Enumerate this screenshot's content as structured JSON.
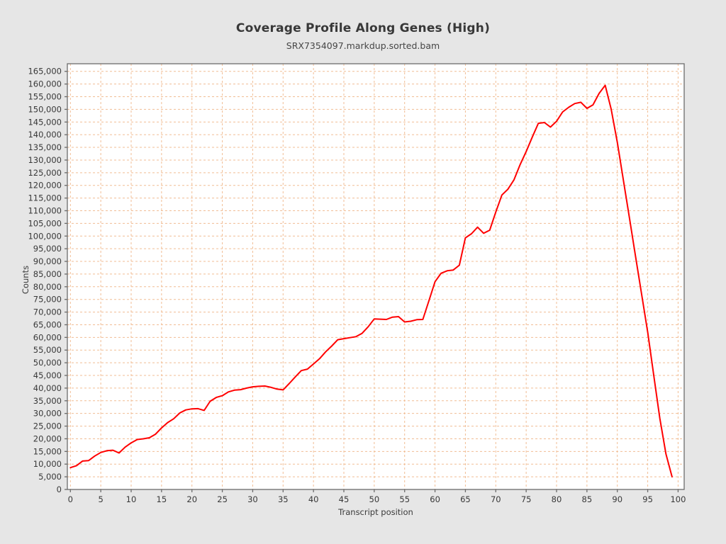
{
  "figure": {
    "title": "Coverage Profile Along Genes (High)",
    "subtitle": "SRX7354097.markdup.sorted.bam"
  },
  "chart_data": {
    "type": "line",
    "title": "Coverage Profile Along Genes (High)",
    "subtitle": "SRX7354097.markdup.sorted.bam",
    "xlabel": "Transcript position",
    "ylabel": "Counts",
    "xlim": [
      -0.5,
      101
    ],
    "ylim": [
      0,
      168000
    ],
    "x_ticks": [
      0,
      5,
      10,
      15,
      20,
      25,
      30,
      35,
      40,
      45,
      50,
      55,
      60,
      65,
      70,
      75,
      80,
      85,
      90,
      95,
      100
    ],
    "y_ticks": [
      0,
      5000,
      10000,
      15000,
      20000,
      25000,
      30000,
      35000,
      40000,
      45000,
      50000,
      55000,
      60000,
      65000,
      70000,
      75000,
      80000,
      85000,
      90000,
      95000,
      100000,
      105000,
      110000,
      115000,
      120000,
      125000,
      130000,
      135000,
      140000,
      145000,
      150000,
      155000,
      160000,
      165000
    ],
    "grid": "dashed",
    "grid_color": "#f1bd94",
    "line_color": "#ff0000",
    "axis_color": "#6b6b6b",
    "tick_label_color": "#383838",
    "background": "#e6e6e6",
    "plot_background": "#ffffff",
    "legend": "none",
    "x": [
      0,
      1,
      2,
      3,
      4,
      5,
      6,
      7,
      8,
      9,
      10,
      11,
      12,
      13,
      14,
      15,
      16,
      17,
      18,
      19,
      20,
      21,
      22,
      23,
      24,
      25,
      26,
      27,
      28,
      29,
      30,
      31,
      32,
      33,
      34,
      35,
      36,
      37,
      38,
      39,
      40,
      41,
      42,
      43,
      44,
      45,
      46,
      47,
      48,
      49,
      50,
      51,
      52,
      53,
      54,
      55,
      56,
      57,
      58,
      59,
      60,
      61,
      62,
      63,
      64,
      65,
      66,
      67,
      68,
      69,
      70,
      71,
      72,
      73,
      74,
      75,
      76,
      77,
      78,
      79,
      80,
      81,
      82,
      83,
      84,
      85,
      86,
      87,
      88,
      89,
      90,
      91,
      92,
      93,
      94,
      95,
      96,
      97,
      98,
      99
    ],
    "values": [
      8600,
      9400,
      11200,
      11400,
      13200,
      14600,
      15300,
      15500,
      14400,
      16700,
      18400,
      19700,
      20000,
      20400,
      21800,
      24300,
      26400,
      27900,
      30200,
      31400,
      31800,
      31900,
      31200,
      34800,
      36300,
      37000,
      38500,
      39200,
      39400,
      40000,
      40500,
      40700,
      40800,
      40300,
      39600,
      39300,
      41800,
      44400,
      46900,
      47500,
      49500,
      51600,
      54300,
      56600,
      59100,
      59500,
      59900,
      60300,
      61600,
      64200,
      67300,
      67200,
      67100,
      68000,
      68200,
      66100,
      66400,
      67000,
      67100,
      74500,
      82000,
      85300,
      86300,
      86600,
      88500,
      99300,
      100900,
      103500,
      101100,
      102300,
      109500,
      116200,
      118500,
      122200,
      128200,
      133300,
      139000,
      144500,
      144800,
      143000,
      145300,
      149000,
      150800,
      152300,
      152800,
      150400,
      151800,
      156300,
      159500,
      150000,
      137000,
      122000,
      107000,
      92000,
      77000,
      62000,
      45000,
      28000,
      14000,
      5000
    ]
  }
}
